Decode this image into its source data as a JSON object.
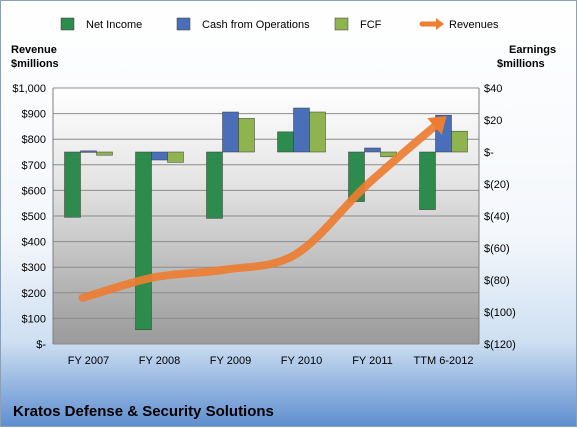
{
  "chart_data": {
    "type": "bar",
    "title": "",
    "subtitle": "Kratos Defense & Security Solutions",
    "categories": [
      "FY 2007",
      "FY 2008",
      "FY 2009",
      "FY 2010",
      "FY 2011",
      "TTM 6-2012"
    ],
    "left_axis": {
      "label_line1": "Revenue",
      "label_line2": "$millions",
      "ylim": [
        0,
        1000
      ],
      "ticks": [
        0,
        100,
        200,
        300,
        400,
        500,
        600,
        700,
        800,
        900,
        1000
      ],
      "tick_labels": [
        "$-",
        "$100",
        "$200",
        "$300",
        "$400",
        "$500",
        "$600",
        "$700",
        "$800",
        "$900",
        "$1,000"
      ]
    },
    "right_axis": {
      "label_line1": "Earnings",
      "label_line2": "$millions",
      "ylim": [
        -120,
        40
      ],
      "ticks": [
        -120,
        -100,
        -80,
        -60,
        -40,
        -20,
        0,
        20,
        40
      ],
      "tick_labels": [
        "$(120)",
        "$(100)",
        "$(80)",
        "$(60)",
        "$(40)",
        "$(20)",
        "$-",
        "$20",
        "$40"
      ]
    },
    "series": [
      {
        "name": "Net Income",
        "axis": "right",
        "color": "#2e8b4e",
        "values": [
          -40.8,
          -111.1,
          -41.5,
          12.6,
          -31.0,
          -36.0
        ]
      },
      {
        "name": "Cash from Operations",
        "axis": "right",
        "color": "#4a6fb8",
        "values": [
          0.7,
          -5.0,
          25.0,
          27.5,
          2.5,
          23.0
        ]
      },
      {
        "name": "FCF",
        "axis": "right",
        "color": "#8fb34f",
        "values": [
          -2.0,
          -6.5,
          21.0,
          25.0,
          -3.0,
          13.0
        ]
      },
      {
        "name": "Revenues",
        "axis": "left",
        "color": "#ed7d31",
        "type": "line",
        "values": [
          180,
          260,
          290,
          350,
          620,
          860
        ]
      }
    ],
    "legend_position": "top",
    "grid": true
  }
}
